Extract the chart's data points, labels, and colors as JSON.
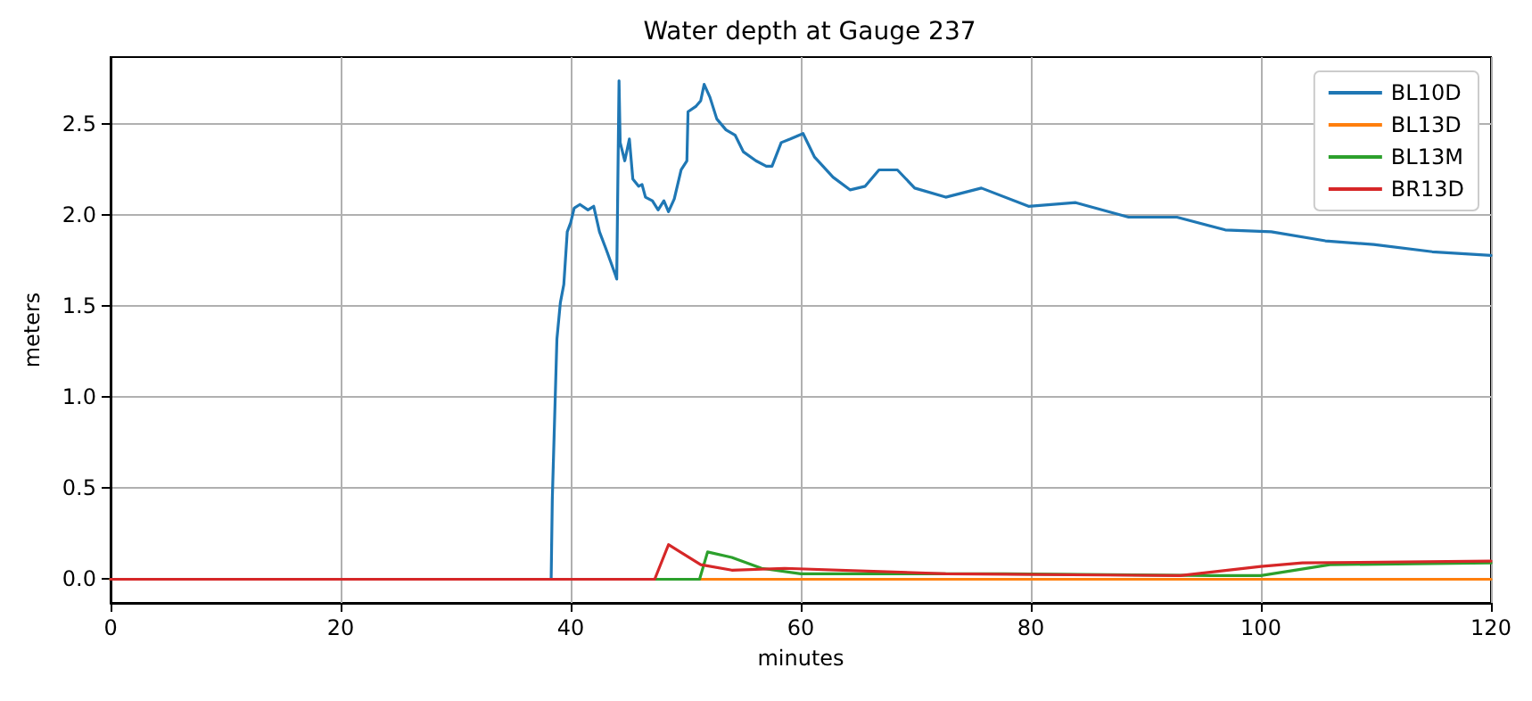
{
  "chart_data": {
    "type": "line",
    "title": "Water depth at Gauge 237",
    "xlabel": "minutes",
    "ylabel": "meters",
    "xlim": [
      0,
      120
    ],
    "xticks": [
      0,
      20,
      40,
      60,
      80,
      100,
      120
    ],
    "ylim": [
      -0.13,
      2.87
    ],
    "yticks": [
      {
        "value": 0,
        "label": "0.0"
      },
      0.5,
      {
        "value": 1,
        "label": "1.0"
      },
      1.5,
      {
        "value": 2,
        "label": "2.0"
      },
      2.5
    ],
    "grid": true,
    "legend": "top right",
    "line_style": "solid",
    "marker": "none",
    "series": [
      {
        "name": "BL10D",
        "color": "#1f77b4",
        "x": [
          0,
          38.3,
          38.4,
          38.8,
          39.1,
          39.4,
          39.7,
          40,
          40.3,
          40.8,
          41.5,
          42,
          42.5,
          43.1,
          43.9,
          44,
          44.2,
          44.3,
          44.7,
          45.1,
          45.4,
          45.9,
          46.2,
          46.5,
          47.1,
          47.6,
          48.1,
          48.5,
          49,
          49.6,
          50.1,
          50.2,
          50.9,
          51.3,
          51.6,
          52.1,
          52.7,
          53.5,
          54.3,
          55,
          56.1,
          57,
          57.5,
          58.3,
          59.1,
          60.2,
          61.2,
          62.8,
          64.3,
          65.6,
          66.8,
          68.4,
          69.9,
          72.6,
          75.7,
          79.8,
          83.9,
          88.5,
          92.7,
          96.9,
          100.9,
          105.6,
          109.8,
          114.9,
          120
        ],
        "values": [
          0,
          0,
          0.44,
          1.32,
          1.52,
          1.62,
          1.91,
          1.96,
          2.04,
          2.06,
          2.03,
          2.05,
          1.91,
          1.81,
          1.67,
          1.65,
          2.74,
          2.4,
          2.3,
          2.42,
          2.2,
          2.16,
          2.17,
          2.1,
          2.08,
          2.03,
          2.08,
          2.02,
          2.09,
          2.25,
          2.3,
          2.57,
          2.6,
          2.63,
          2.72,
          2.65,
          2.53,
          2.47,
          2.44,
          2.35,
          2.3,
          2.27,
          2.27,
          2.4,
          2.42,
          2.45,
          2.32,
          2.21,
          2.14,
          2.16,
          2.25,
          2.25,
          2.15,
          2.1,
          2.15,
          2.05,
          2.07,
          1.99,
          1.99,
          1.92,
          1.91,
          1.86,
          1.84,
          1.8,
          1.78
        ]
      },
      {
        "name": "BL13D",
        "color": "#ff7f0e",
        "x": [
          0,
          120
        ],
        "values": [
          0,
          0
        ]
      },
      {
        "name": "BL13M",
        "color": "#2ca02c",
        "x": [
          0,
          51.2,
          51.9,
          54,
          56.6,
          60,
          77.7,
          95.8,
          100,
          106,
          120
        ],
        "values": [
          0,
          0,
          0.15,
          0.12,
          0.06,
          0.03,
          0.03,
          0.02,
          0.02,
          0.08,
          0.09
        ]
      },
      {
        "name": "BR13D",
        "color": "#d62728",
        "x": [
          0,
          47.3,
          48.5,
          51.3,
          54,
          58.6,
          72.6,
          93,
          100,
          103.6,
          120
        ],
        "values": [
          0,
          0,
          0.19,
          0.08,
          0.05,
          0.06,
          0.03,
          0.02,
          0.07,
          0.09,
          0.1
        ]
      }
    ]
  }
}
